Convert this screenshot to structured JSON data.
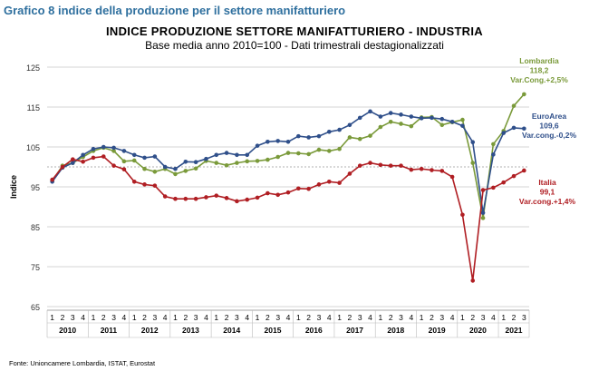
{
  "header": {
    "heading": "Grafico 8 indice della produzione per il settore manifatturiero",
    "source": "Fonte: Unioncamere Lombardia, ISTAT, Eurostat"
  },
  "chart_data": {
    "type": "line",
    "title": "INDICE PRODUZIONE SETTORE MANIFATTURIERO - INDUSTRIA",
    "subtitle": "Base media anno 2010=100 - Dati trimestrali destagionalizzati",
    "ylabel": "Indice",
    "ylim": [
      65,
      125
    ],
    "yticks": [
      65,
      75,
      85,
      95,
      105,
      115,
      125
    ],
    "quarter_labels": [
      "1",
      "2",
      "3",
      "4",
      "1",
      "2",
      "3",
      "4",
      "1",
      "2",
      "3",
      "4",
      "1",
      "2",
      "3",
      "4",
      "1",
      "2",
      "3",
      "4",
      "1",
      "2",
      "3",
      "4",
      "1",
      "2",
      "3",
      "4",
      "1",
      "2",
      "3",
      "4",
      "1",
      "2",
      "3",
      "4",
      "1",
      "2",
      "3",
      "4",
      "1",
      "2",
      "3",
      "4",
      "1",
      "2",
      "3"
    ],
    "years": [
      "2010",
      "2011",
      "2012",
      "2013",
      "2014",
      "2015",
      "2016",
      "2017",
      "2018",
      "2019",
      "2020",
      "2021"
    ],
    "grid": true,
    "series": [
      {
        "name": "Lombardia",
        "color": "#7a9a3a",
        "label": {
          "name": "Lombardia",
          "value": "118,2",
          "change": "Var.Cong.+2,5%"
        },
        "values": [
          96.5,
          100.3,
          101.0,
          102.5,
          104.0,
          104.8,
          104.0,
          101.4,
          101.6,
          99.5,
          98.8,
          99.5,
          98.2,
          99.0,
          99.6,
          101.5,
          101.0,
          100.4,
          101.0,
          101.4,
          101.5,
          101.8,
          102.5,
          103.5,
          103.4,
          103.2,
          104.3,
          104.0,
          104.5,
          107.4,
          107.0,
          107.8,
          110.0,
          111.3,
          110.8,
          110.2,
          112.4,
          112.5,
          110.5,
          111.2,
          111.8,
          101.0,
          87.2,
          105.7,
          109.0,
          115.3,
          118.2
        ]
      },
      {
        "name": "EuroArea",
        "color": "#2f4f8a",
        "label": {
          "name": "EuroArea",
          "value": "109,6",
          "change": "Var.cong.-0,2%"
        },
        "values": [
          96.3,
          99.8,
          101.0,
          103.0,
          104.5,
          105.0,
          104.8,
          104.0,
          103.0,
          102.3,
          102.6,
          100.0,
          99.5,
          101.3,
          101.2,
          102.0,
          103.0,
          103.5,
          103.0,
          103.0,
          105.3,
          106.3,
          106.5,
          106.3,
          107.7,
          107.4,
          107.7,
          108.8,
          109.3,
          110.5,
          112.3,
          113.9,
          112.6,
          113.5,
          113.1,
          112.6,
          112.2,
          112.3,
          112.0,
          111.3,
          110.3,
          106.2,
          88.5,
          103.1,
          108.5,
          109.8,
          109.6
        ]
      },
      {
        "name": "Italia",
        "color": "#b01e23",
        "label": {
          "name": "Italia",
          "value": "99,1",
          "change": "Var.cong.+1,4%"
        },
        "values": [
          96.8,
          100.0,
          101.9,
          101.3,
          102.3,
          102.6,
          100.3,
          99.4,
          96.3,
          95.6,
          95.3,
          92.6,
          92.0,
          92.0,
          92.0,
          92.4,
          92.8,
          92.2,
          91.4,
          91.8,
          92.3,
          93.4,
          93.0,
          93.6,
          94.6,
          94.5,
          95.6,
          96.3,
          96.0,
          98.3,
          100.3,
          101.0,
          100.5,
          100.3,
          100.3,
          99.3,
          99.5,
          99.2,
          99.0,
          97.5,
          88.0,
          71.5,
          94.2,
          94.8,
          96.1,
          97.7,
          99.1
        ]
      }
    ]
  }
}
